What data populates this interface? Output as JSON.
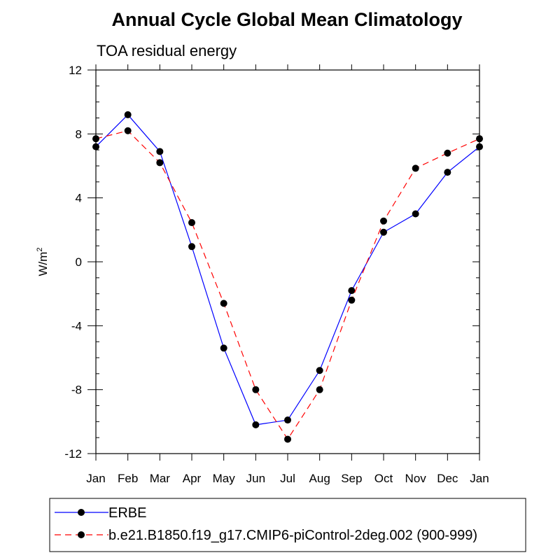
{
  "chart_data": {
    "type": "line",
    "title": "Annual Cycle Global Mean Climatology",
    "subtitle": "TOA residual energy",
    "xlabel": "",
    "ylabel": "W/m",
    "ylabel_superscript": "2",
    "categories": [
      "Jan",
      "Feb",
      "Mar",
      "Apr",
      "May",
      "Jun",
      "Jul",
      "Aug",
      "Sep",
      "Oct",
      "Nov",
      "Dec",
      "Jan"
    ],
    "ylim": [
      -12,
      12
    ],
    "yticks": [
      -12,
      -8,
      -4,
      0,
      4,
      8,
      12
    ],
    "ytick_labels": [
      "-12",
      "-8",
      "-4",
      "0",
      "4",
      "8",
      "12"
    ],
    "grid": false,
    "legend_position": "bottom",
    "series": [
      {
        "name": "ERBE",
        "color": "#0000ff",
        "dash": "solid",
        "values": [
          7.2,
          9.2,
          6.9,
          0.95,
          -5.4,
          -10.2,
          -9.9,
          -6.8,
          -1.8,
          1.85,
          3.0,
          5.6,
          7.2
        ]
      },
      {
        "name": "b.e21.B1850.f19_g17.CMIP6-piControl-2deg.002 (900-999)",
        "color": "#ff0000",
        "dash": "dashed",
        "values": [
          7.7,
          8.2,
          6.2,
          2.45,
          -2.6,
          -8.0,
          -11.1,
          -8.0,
          -2.4,
          2.55,
          5.85,
          6.8,
          7.7
        ]
      }
    ]
  }
}
